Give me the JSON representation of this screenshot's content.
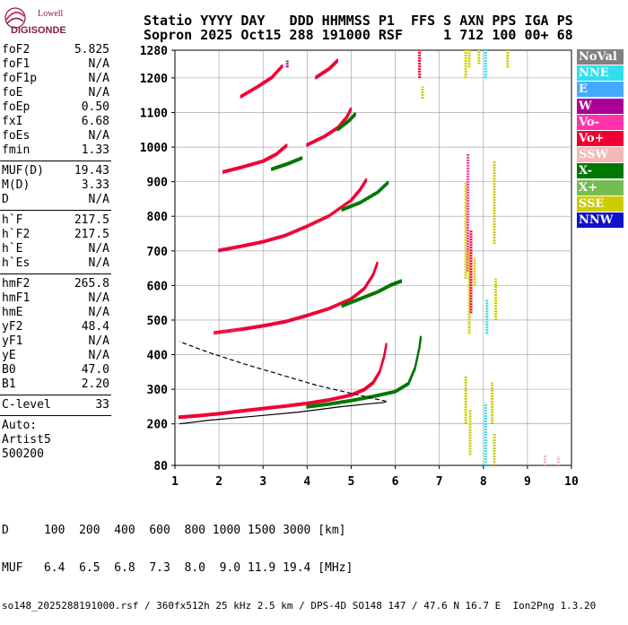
{
  "logo": {
    "line1": "Lowell",
    "line2": "DIGISONDE"
  },
  "header": {
    "line1": "Statio YYYY DAY   DDD HHMMSS P1  FFS S AXN PPS IGA PS",
    "line2": "Sopron 2025 Oct15 288 191000 RSF     1 712 100 00+ 68"
  },
  "params": {
    "group1": [
      {
        "name": "foF2",
        "value": "5.825"
      },
      {
        "name": "foF1",
        "value": "N/A"
      },
      {
        "name": "foF1p",
        "value": "N/A"
      },
      {
        "name": "foE",
        "value": "N/A"
      },
      {
        "name": "foEp",
        "value": "0.50"
      },
      {
        "name": "fxI",
        "value": "6.68"
      },
      {
        "name": "foEs",
        "value": "N/A"
      },
      {
        "name": "fmin",
        "value": "1.33"
      }
    ],
    "group2": [
      {
        "name": "MUF(D)",
        "value": "19.43"
      },
      {
        "name": "M(D)",
        "value": "3.33"
      },
      {
        "name": "D",
        "value": "N/A"
      }
    ],
    "group3": [
      {
        "name": "h`F",
        "value": "217.5"
      },
      {
        "name": "h`F2",
        "value": "217.5"
      },
      {
        "name": "h`E",
        "value": "N/A"
      },
      {
        "name": "h`Es",
        "value": "N/A"
      }
    ],
    "group4": [
      {
        "name": "hmF2",
        "value": "265.8"
      },
      {
        "name": "hmF1",
        "value": "N/A"
      },
      {
        "name": "hmE",
        "value": "N/A"
      },
      {
        "name": "yF2",
        "value": "48.4"
      },
      {
        "name": "yF1",
        "value": "N/A"
      },
      {
        "name": "yE",
        "value": "N/A"
      },
      {
        "name": "B0",
        "value": "47.0"
      },
      {
        "name": "B1",
        "value": "2.20"
      }
    ],
    "clevel": {
      "name": "C-level",
      "value": "33"
    },
    "auto": {
      "label": "Auto:",
      "line1": "Artist5",
      "line2": "500200"
    }
  },
  "legend": [
    {
      "label": "NoVal",
      "color": "#808080"
    },
    {
      "label": "NNE",
      "color": "#33ddee"
    },
    {
      "label": "E",
      "color": "#44aaff"
    },
    {
      "label": "W",
      "color": "#aa0099"
    },
    {
      "label": "Vo-",
      "color": "#ff33aa"
    },
    {
      "label": "Vo+",
      "color": "#ee0033"
    },
    {
      "label": "SSW",
      "color": "#f4b8b8"
    },
    {
      "label": "X-",
      "color": "#007700"
    },
    {
      "label": "X+",
      "color": "#77bb55"
    },
    {
      "label": "SSE",
      "color": "#cccc00"
    },
    {
      "label": "NNW",
      "color": "#1111cc"
    }
  ],
  "footer": {
    "d_row": "D     100  200  400  600  800 1000 1500 3000 [km]",
    "muf_row": "MUF   6.4  6.5  6.8  7.3  8.0  9.0 11.9 19.4 [MHz]",
    "info_row": "so148_2025288191000.rsf / 360fx512h 25 kHz 2.5 km / DPS-4D SO148 147 / 47.6 N 16.7 E  Ion2Png 1.3.20"
  },
  "chart_data": {
    "type": "scatter",
    "x_ticks": [
      "1",
      "2",
      "3",
      "4",
      "5",
      "6",
      "7",
      "8",
      "9",
      "10"
    ],
    "y_ticks": [
      "80",
      "200",
      "300",
      "400",
      "500",
      "600",
      "700",
      "800",
      "900",
      "1000",
      "1100",
      "1200",
      "1280"
    ],
    "xlim": [
      1,
      10
    ],
    "ylim": [
      80,
      1280
    ],
    "series": [
      {
        "color": "#ee0033",
        "points": [
          [
            1.1,
            218
          ],
          [
            1.5,
            222
          ],
          [
            2.0,
            228
          ],
          [
            2.5,
            236
          ],
          [
            3.0,
            243
          ],
          [
            3.5,
            250
          ],
          [
            4.0,
            258
          ],
          [
            4.5,
            268
          ],
          [
            5.0,
            282
          ],
          [
            5.3,
            298
          ],
          [
            5.5,
            318
          ],
          [
            5.65,
            350
          ],
          [
            5.75,
            395
          ],
          [
            5.8,
            430
          ]
        ]
      },
      {
        "color": "#007700",
        "points": [
          [
            4.0,
            248
          ],
          [
            4.5,
            256
          ],
          [
            5.0,
            266
          ],
          [
            5.5,
            278
          ],
          [
            6.0,
            292
          ],
          [
            6.3,
            315
          ],
          [
            6.45,
            360
          ],
          [
            6.55,
            420
          ],
          [
            6.58,
            450
          ]
        ]
      },
      {
        "color": "#ee0033",
        "points": [
          [
            1.9,
            462
          ],
          [
            2.5,
            472
          ],
          [
            3.0,
            482
          ],
          [
            3.5,
            494
          ],
          [
            4.0,
            512
          ],
          [
            4.5,
            532
          ],
          [
            5.0,
            560
          ],
          [
            5.3,
            590
          ],
          [
            5.5,
            630
          ],
          [
            5.6,
            665
          ]
        ]
      },
      {
        "color": "#007700",
        "points": [
          [
            4.8,
            540
          ],
          [
            5.2,
            560
          ],
          [
            5.6,
            580
          ],
          [
            5.9,
            600
          ],
          [
            6.15,
            612
          ]
        ]
      },
      {
        "color": "#ee0033",
        "points": [
          [
            2.0,
            700
          ],
          [
            2.5,
            712
          ],
          [
            3.0,
            725
          ],
          [
            3.5,
            743
          ],
          [
            4.0,
            770
          ],
          [
            4.5,
            800
          ],
          [
            5.0,
            845
          ],
          [
            5.2,
            875
          ],
          [
            5.35,
            905
          ]
        ]
      },
      {
        "color": "#007700",
        "points": [
          [
            4.8,
            818
          ],
          [
            5.2,
            838
          ],
          [
            5.6,
            868
          ],
          [
            5.85,
            898
          ]
        ]
      },
      {
        "color": "#ee0033",
        "points": [
          [
            2.1,
            927
          ],
          [
            2.5,
            940
          ],
          [
            3.0,
            958
          ],
          [
            3.3,
            978
          ],
          [
            3.55,
            1005
          ]
        ]
      },
      {
        "color": "#007700",
        "points": [
          [
            3.2,
            935
          ],
          [
            3.55,
            950
          ],
          [
            3.9,
            968
          ]
        ]
      },
      {
        "color": "#ee0033",
        "points": [
          [
            4.0,
            1005
          ],
          [
            4.4,
            1030
          ],
          [
            4.7,
            1055
          ],
          [
            4.9,
            1085
          ],
          [
            5.0,
            1110
          ]
        ]
      },
      {
        "color": "#007700",
        "points": [
          [
            4.7,
            1050
          ],
          [
            4.95,
            1075
          ],
          [
            5.1,
            1095
          ]
        ]
      },
      {
        "color": "#ee0033",
        "points": [
          [
            2.5,
            1145
          ],
          [
            2.9,
            1175
          ],
          [
            3.2,
            1200
          ],
          [
            3.45,
            1235
          ]
        ]
      },
      {
        "color": "#ee0033",
        "points": [
          [
            4.2,
            1200
          ],
          [
            4.5,
            1225
          ],
          [
            4.7,
            1250
          ]
        ]
      }
    ],
    "profile_lower": [
      [
        1.1,
        200
      ],
      [
        1.8,
        211
      ],
      [
        2.8,
        222
      ],
      [
        3.8,
        234
      ],
      [
        4.8,
        250
      ],
      [
        5.4,
        258
      ],
      [
        5.75,
        262
      ],
      [
        5.8,
        265
      ]
    ],
    "profile_upper": [
      [
        5.8,
        265
      ],
      [
        5.0,
        288
      ],
      [
        4.2,
        312
      ],
      [
        3.4,
        342
      ],
      [
        2.6,
        372
      ],
      [
        1.8,
        405
      ],
      [
        1.1,
        438
      ]
    ],
    "vertical_bars": [
      {
        "x": 6.55,
        "y1": 1200,
        "y2": 1280,
        "color": "#ee0033"
      },
      {
        "x": 6.62,
        "y1": 1140,
        "y2": 1175,
        "color": "#cccc00"
      },
      {
        "x": 7.6,
        "y1": 1200,
        "y2": 1280,
        "color": "#cccc00"
      },
      {
        "x": 7.68,
        "y1": 1230,
        "y2": 1280,
        "color": "#cccc00"
      },
      {
        "x": 7.6,
        "y1": 620,
        "y2": 900,
        "color": "#cccc00"
      },
      {
        "x": 7.65,
        "y1": 640,
        "y2": 980,
        "color": "#ff33aa"
      },
      {
        "x": 7.68,
        "y1": 460,
        "y2": 700,
        "color": "#cccc00"
      },
      {
        "x": 7.72,
        "y1": 520,
        "y2": 760,
        "color": "#ee0033"
      },
      {
        "x": 7.8,
        "y1": 600,
        "y2": 680,
        "color": "#cccc00"
      },
      {
        "x": 7.6,
        "y1": 200,
        "y2": 340,
        "color": "#cccc00"
      },
      {
        "x": 7.7,
        "y1": 110,
        "y2": 240,
        "color": "#cccc00"
      },
      {
        "x": 8.05,
        "y1": 1200,
        "y2": 1280,
        "color": "#33ddee"
      },
      {
        "x": 8.05,
        "y1": 80,
        "y2": 260,
        "color": "#33ddee"
      },
      {
        "x": 8.08,
        "y1": 460,
        "y2": 560,
        "color": "#33ddee"
      },
      {
        "x": 8.25,
        "y1": 720,
        "y2": 960,
        "color": "#cccc00"
      },
      {
        "x": 8.28,
        "y1": 500,
        "y2": 620,
        "color": "#cccc00"
      },
      {
        "x": 8.2,
        "y1": 200,
        "y2": 320,
        "color": "#cccc00"
      },
      {
        "x": 8.25,
        "y1": 80,
        "y2": 170,
        "color": "#cccc00"
      },
      {
        "x": 9.4,
        "y1": 80,
        "y2": 110,
        "color": "#f4b8b8"
      },
      {
        "x": 9.7,
        "y1": 80,
        "y2": 105,
        "color": "#f4b8b8"
      },
      {
        "x": 8.55,
        "y1": 1230,
        "y2": 1280,
        "color": "#cccc00"
      },
      {
        "x": 7.9,
        "y1": 1240,
        "y2": 1280,
        "color": "#cccc00"
      },
      {
        "x": 3.55,
        "y1": 1230,
        "y2": 1250,
        "color": "#aa0099"
      }
    ]
  }
}
